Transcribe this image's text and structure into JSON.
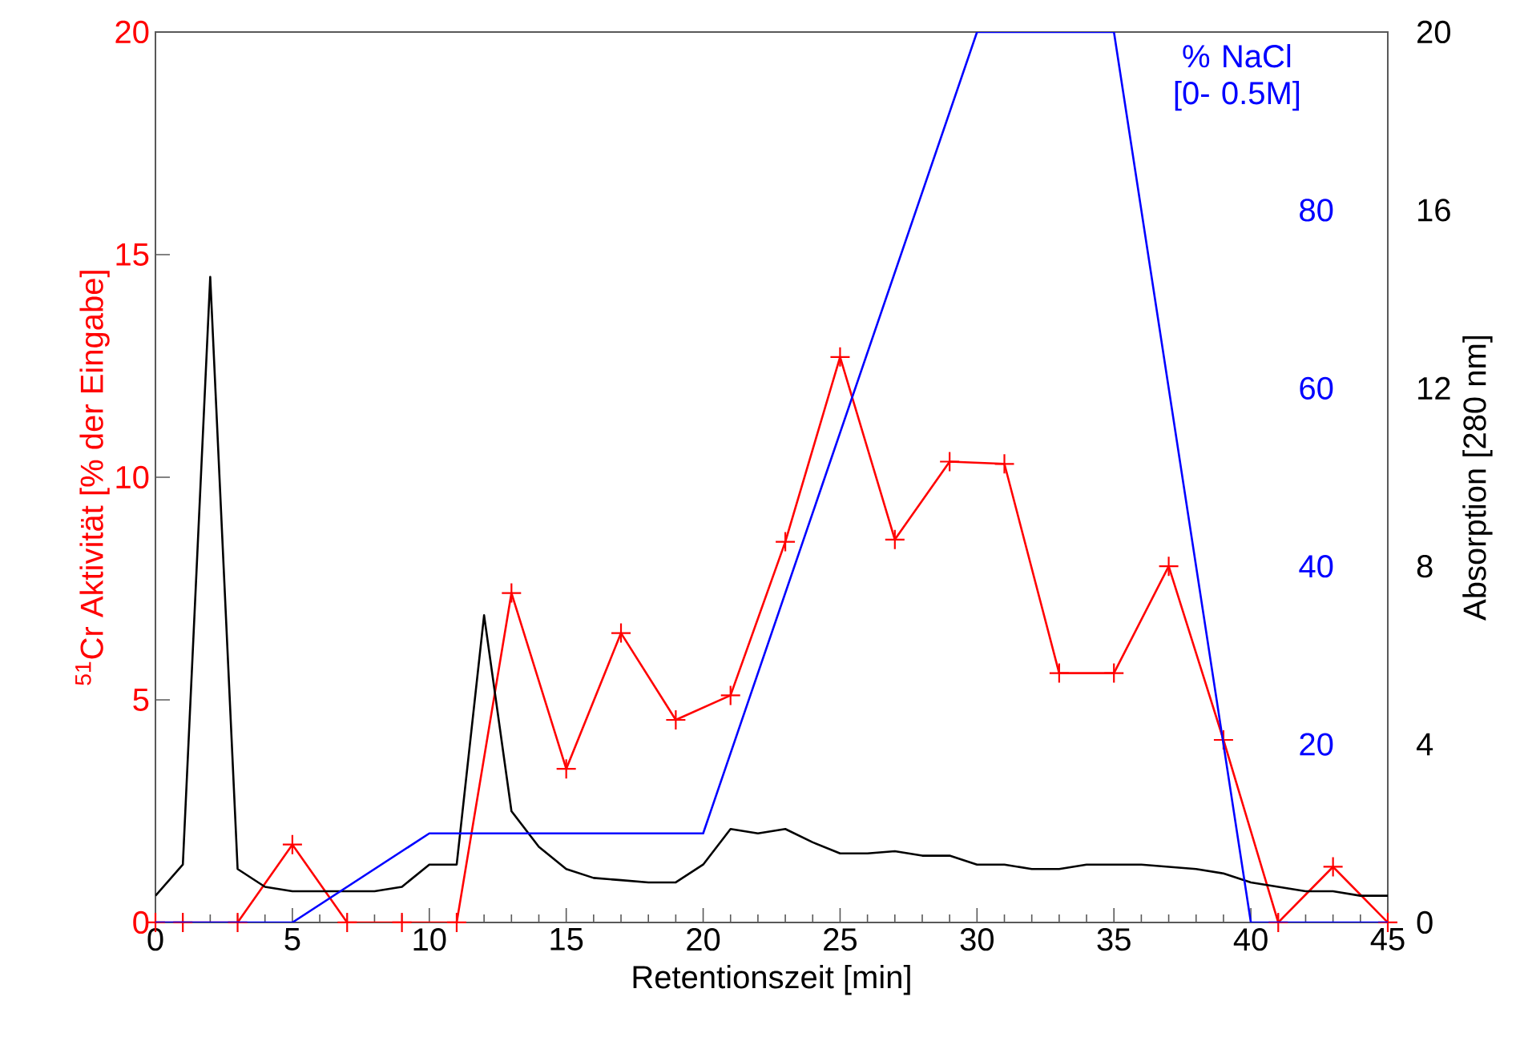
{
  "chart_data": {
    "type": "line",
    "xlabel": "Retentionszeit [min]",
    "ylabel": "$^{51}$Cr Aktivität [% der Eingabe]",
    "y2label": "Absorption [280 nm]",
    "y3label": "% NaCl [0- 0.5M]",
    "xlim": [
      0,
      45
    ],
    "ylim": [
      0,
      20
    ],
    "y2lim": [
      0,
      20
    ],
    "y3lim": [
      0,
      100
    ],
    "xticks": [
      0,
      {
        "value": 1,
        "label": null
      },
      {
        "value": 2,
        "label": null
      },
      {
        "value": 3,
        "label": null
      },
      {
        "value": 4,
        "label": null
      },
      5,
      {
        "value": 6,
        "label": null
      },
      {
        "value": 7,
        "label": null
      },
      {
        "value": 8,
        "label": null
      },
      {
        "value": 9,
        "label": null
      },
      10,
      {
        "value": 11,
        "label": null
      },
      {
        "value": 12,
        "label": null
      },
      {
        "value": 13,
        "label": null
      },
      {
        "value": 14,
        "label": null
      },
      15,
      {
        "value": 16,
        "label": null
      },
      {
        "value": 17,
        "label": null
      },
      {
        "value": 18,
        "label": null
      },
      {
        "value": 19,
        "label": null
      },
      20,
      {
        "value": 21,
        "label": null
      },
      {
        "value": 22,
        "label": null
      },
      {
        "value": 23,
        "label": null
      },
      {
        "value": 24,
        "label": null
      },
      25,
      {
        "value": 26,
        "label": null
      },
      {
        "value": 27,
        "label": null
      },
      {
        "value": 28,
        "label": null
      },
      {
        "value": 29,
        "label": null
      },
      30,
      {
        "value": 31,
        "label": null
      },
      {
        "value": 32,
        "label": null
      },
      {
        "value": 33,
        "label": null
      },
      {
        "value": 34,
        "label": null
      },
      35,
      {
        "value": 36,
        "label": null
      },
      {
        "value": 37,
        "label": null
      },
      {
        "value": 38,
        "label": null
      },
      {
        "value": 39,
        "label": null
      },
      40,
      {
        "value": 41,
        "label": null
      },
      {
        "value": 42,
        "label": null
      },
      {
        "value": 43,
        "label": null
      },
      {
        "value": 44,
        "label": null
      },
      45
    ],
    "yticks": [
      0,
      5,
      10,
      15,
      20
    ],
    "y2ticks": [
      0,
      4,
      8,
      12,
      16,
      20
    ],
    "y3ticks": [
      20,
      40,
      60,
      80
    ],
    "series": [
      {
        "color": "#000000",
        "axis": "y2",
        "marker": "none",
        "x": [
          0,
          1,
          2,
          3,
          4,
          5,
          6,
          7,
          8,
          9,
          10,
          11,
          12,
          13,
          14,
          15,
          16,
          17,
          18,
          19,
          20,
          21,
          22,
          23,
          24,
          25,
          26,
          27,
          28,
          29,
          30,
          31,
          32,
          33,
          34,
          35,
          36,
          37,
          38,
          39,
          40,
          41,
          42,
          43,
          44,
          45
        ],
        "values": [
          0.6,
          1.3,
          14.5,
          1.2,
          0.8,
          0.7,
          0.7,
          0.7,
          0.7,
          0.8,
          1.3,
          1.3,
          6.9,
          2.5,
          1.7,
          1.2,
          1.0,
          0.95,
          0.9,
          0.9,
          1.3,
          2.1,
          2.0,
          2.1,
          1.8,
          1.55,
          1.55,
          1.6,
          1.5,
          1.5,
          1.3,
          1.3,
          1.2,
          1.2,
          1.3,
          1.3,
          1.3,
          1.25,
          1.2,
          1.1,
          0.9,
          0.8,
          0.7,
          0.7,
          0.6,
          0.6
        ]
      },
      {
        "color": "#0000ff",
        "axis": "y3",
        "marker": "none",
        "x": [
          0,
          5,
          10,
          20,
          30,
          35,
          40,
          45
        ],
        "values": [
          0,
          0,
          10,
          10,
          100,
          100,
          0,
          0
        ]
      },
      {
        "color": "#ff0000",
        "marker": "cross",
        "x": [
          0,
          1,
          3,
          5,
          7,
          9,
          11,
          13,
          15,
          17,
          19,
          21,
          23,
          25,
          27,
          29,
          31,
          33,
          35,
          37,
          39,
          41,
          43,
          45
        ],
        "values": [
          0,
          0,
          0,
          1.75,
          0,
          0,
          0,
          7.4,
          3.45,
          6.5,
          4.55,
          5.1,
          8.55,
          12.7,
          8.6,
          10.35,
          10.3,
          5.6,
          5.6,
          8.0,
          4.1,
          0,
          1.25,
          0
        ]
      }
    ]
  }
}
